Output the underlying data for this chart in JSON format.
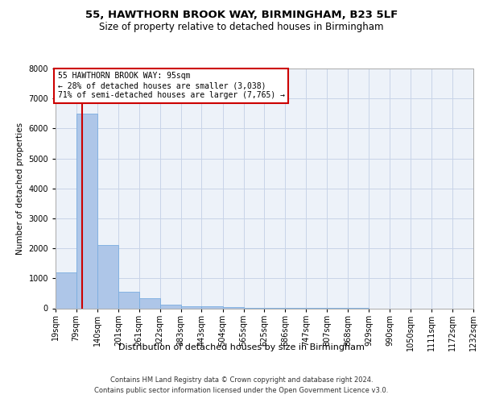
{
  "title_line1": "55, HAWTHORN BROOK WAY, BIRMINGHAM, B23 5LF",
  "title_line2": "Size of property relative to detached houses in Birmingham",
  "xlabel": "Distribution of detached houses by size in Birmingham",
  "ylabel": "Number of detached properties",
  "footnote1": "Contains HM Land Registry data © Crown copyright and database right 2024.",
  "footnote2": "Contains public sector information licensed under the Open Government Licence v3.0.",
  "bin_edges": [
    19,
    79,
    140,
    201,
    261,
    322,
    383,
    443,
    504,
    565,
    625,
    686,
    747,
    807,
    868,
    929,
    990,
    1050,
    1111,
    1172,
    1232
  ],
  "bar_heights": [
    1200,
    6500,
    2100,
    550,
    340,
    130,
    75,
    55,
    30,
    10,
    5,
    3,
    2,
    1,
    1,
    0,
    0,
    0,
    0,
    0
  ],
  "bar_color": "#aec6e8",
  "bar_edgecolor": "#7aade0",
  "property_size": 95,
  "annotation_line1": "55 HAWTHORN BROOK WAY: 95sqm",
  "annotation_line2": "← 28% of detached houses are smaller (3,038)",
  "annotation_line3": "71% of semi-detached houses are larger (7,765) →",
  "vline_color": "#cc0000",
  "annotation_box_edgecolor": "#cc0000",
  "grid_color": "#c8d4e8",
  "bg_color": "#edf2f9",
  "ylim": [
    0,
    8000
  ],
  "yticks": [
    0,
    1000,
    2000,
    3000,
    4000,
    5000,
    6000,
    7000,
    8000
  ],
  "title_fontsize": 9.5,
  "subtitle_fontsize": 8.5,
  "ylabel_fontsize": 7.5,
  "xlabel_fontsize": 8,
  "tick_fontsize": 7,
  "annot_fontsize": 7,
  "footnote_fontsize": 6
}
